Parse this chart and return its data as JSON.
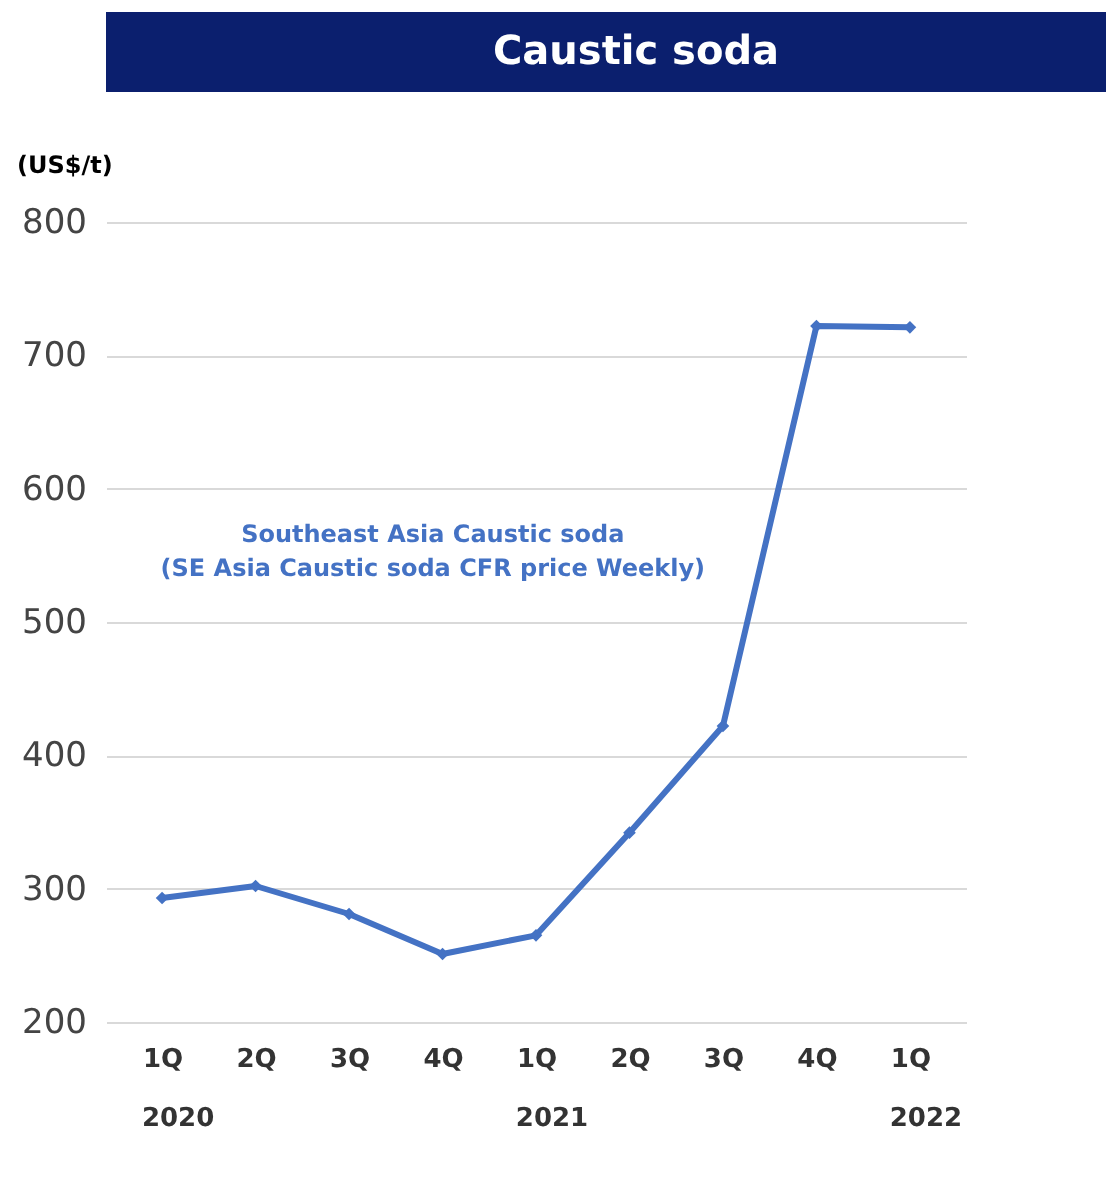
{
  "chart_data": {
    "type": "line",
    "title": "Caustic soda",
    "ylabel": "(US$/t)",
    "categories": [
      "1Q",
      "2Q",
      "3Q",
      "4Q",
      "1Q",
      "2Q",
      "3Q",
      "4Q",
      "1Q"
    ],
    "series": [
      {
        "name": "Southeast Asia Caustic soda\n(SE Asia Caustic soda CFR price Weekly)",
        "color": "#4472c4",
        "values": [
          293,
          302,
          281,
          251,
          265,
          342,
          422,
          722,
          721
        ]
      }
    ],
    "annotations": [
      "2020",
      "2021",
      "2022"
    ],
    "ylim": [
      200,
      800
    ],
    "yticks": [
      200,
      300,
      400,
      500,
      600,
      700,
      800
    ],
    "grid": "y",
    "marker": "diamond",
    "line_style": "solid"
  }
}
